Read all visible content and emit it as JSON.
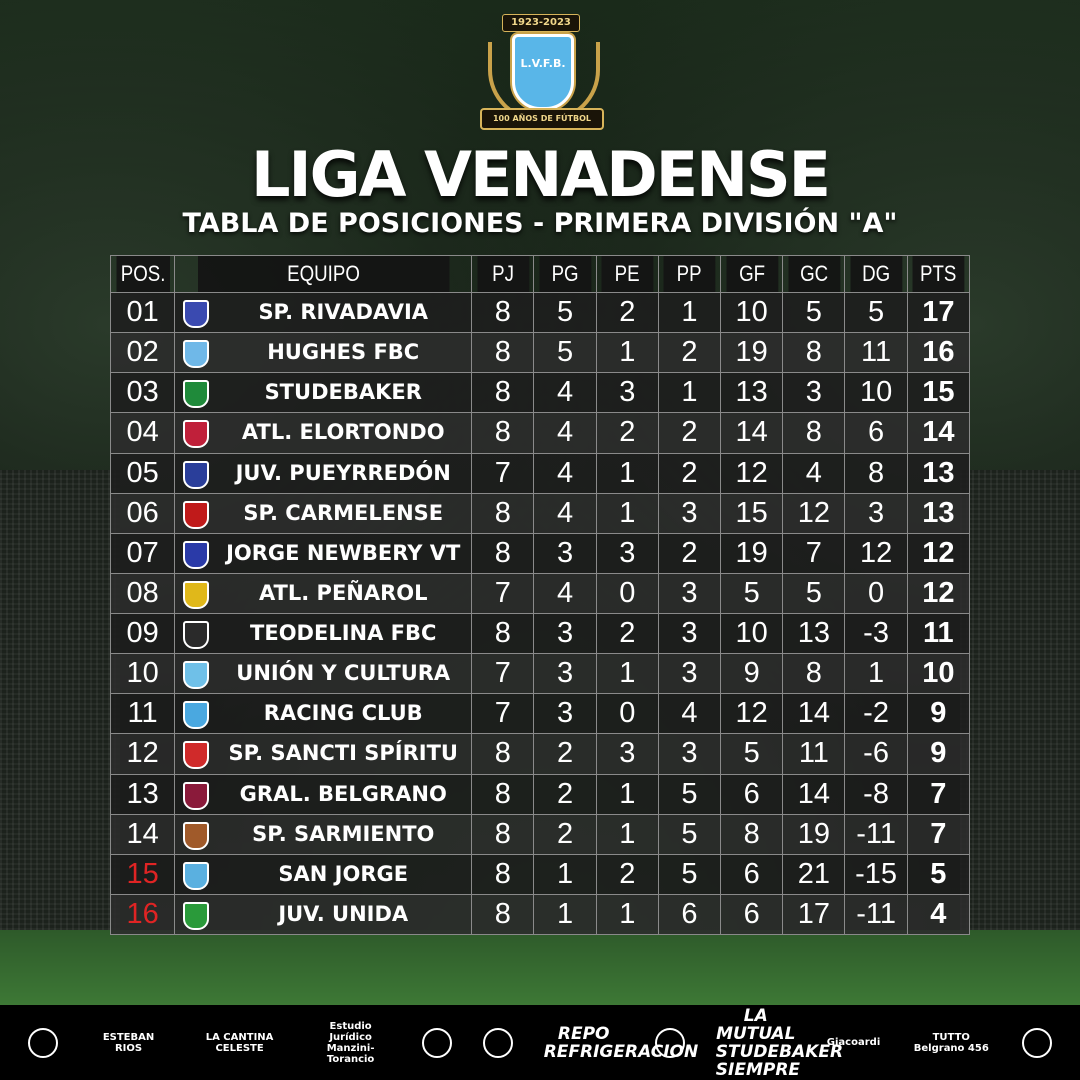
{
  "logo": {
    "years": "1923-2023",
    "initials": "L.V.F.B.",
    "ribbon": "100 AÑOS DE FÚTBOL"
  },
  "header": {
    "title": "LIGA VENADENSE",
    "subtitle": "TABLA DE POSICIONES - PRIMERA DIVISIÓN \"A\""
  },
  "table": {
    "columns": [
      "POS.",
      "EQUIPO",
      "PJ",
      "PG",
      "PE",
      "PP",
      "GF",
      "GC",
      "DG",
      "PTS"
    ],
    "rows": [
      {
        "pos": "01",
        "team": "SP. RIVADAVIA",
        "crest_color": "#3a4ab0",
        "pj": "8",
        "pg": "5",
        "pe": "2",
        "pp": "1",
        "gf": "10",
        "gc": "5",
        "dg": "5",
        "pts": "17"
      },
      {
        "pos": "02",
        "team": "HUGHES FBC",
        "crest_color": "#6fb8e8",
        "pj": "8",
        "pg": "5",
        "pe": "1",
        "pp": "2",
        "gf": "19",
        "gc": "8",
        "dg": "11",
        "pts": "16"
      },
      {
        "pos": "03",
        "team": "STUDEBAKER",
        "crest_color": "#1f8a3a",
        "pj": "8",
        "pg": "4",
        "pe": "3",
        "pp": "1",
        "gf": "13",
        "gc": "3",
        "dg": "10",
        "pts": "15"
      },
      {
        "pos": "04",
        "team": "ATL. ELORTONDO",
        "crest_color": "#c0203a",
        "pj": "8",
        "pg": "4",
        "pe": "2",
        "pp": "2",
        "gf": "14",
        "gc": "8",
        "dg": "6",
        "pts": "14"
      },
      {
        "pos": "05",
        "team": "JUV. PUEYRREDÓN",
        "crest_color": "#2a3e9a",
        "pj": "7",
        "pg": "4",
        "pe": "1",
        "pp": "2",
        "gf": "12",
        "gc": "4",
        "dg": "8",
        "pts": "13"
      },
      {
        "pos": "06",
        "team": "SP. CARMELENSE",
        "crest_color": "#c01a1a",
        "pj": "8",
        "pg": "4",
        "pe": "1",
        "pp": "3",
        "gf": "15",
        "gc": "12",
        "dg": "3",
        "pts": "13"
      },
      {
        "pos": "07",
        "team": "JORGE NEWBERY VT",
        "crest_color": "#2a3aa8",
        "pj": "8",
        "pg": "3",
        "pe": "3",
        "pp": "2",
        "gf": "19",
        "gc": "7",
        "dg": "12",
        "pts": "12"
      },
      {
        "pos": "08",
        "team": "ATL. PEÑAROL",
        "crest_color": "#e0b81a",
        "pj": "7",
        "pg": "4",
        "pe": "0",
        "pp": "3",
        "gf": "5",
        "gc": "5",
        "dg": "0",
        "pts": "12"
      },
      {
        "pos": "09",
        "team": "TEODELINA FBC",
        "crest_color": "#2a2a2a",
        "pj": "8",
        "pg": "3",
        "pe": "2",
        "pp": "3",
        "gf": "10",
        "gc": "13",
        "dg": "-3",
        "pts": "11"
      },
      {
        "pos": "10",
        "team": "UNIÓN Y CULTURA",
        "crest_color": "#6fc0e8",
        "pj": "7",
        "pg": "3",
        "pe": "1",
        "pp": "3",
        "gf": "9",
        "gc": "8",
        "dg": "1",
        "pts": "10"
      },
      {
        "pos": "11",
        "team": "RACING CLUB",
        "crest_color": "#4aa8e0",
        "pj": "7",
        "pg": "3",
        "pe": "0",
        "pp": "4",
        "gf": "12",
        "gc": "14",
        "dg": "-2",
        "pts": "9"
      },
      {
        "pos": "12",
        "team": "SP. SANCTI SPÍRITU",
        "crest_color": "#d02a2a",
        "pj": "8",
        "pg": "2",
        "pe": "3",
        "pp": "3",
        "gf": "5",
        "gc": "11",
        "dg": "-6",
        "pts": "9"
      },
      {
        "pos": "13",
        "team": "GRAL. BELGRANO",
        "crest_color": "#8a1a3a",
        "pj": "8",
        "pg": "2",
        "pe": "1",
        "pp": "5",
        "gf": "6",
        "gc": "14",
        "dg": "-8",
        "pts": "7"
      },
      {
        "pos": "14",
        "team": "SP. SARMIENTO",
        "crest_color": "#a05a2a",
        "pj": "8",
        "pg": "2",
        "pe": "1",
        "pp": "5",
        "gf": "8",
        "gc": "19",
        "dg": "-11",
        "pts": "7"
      },
      {
        "pos": "15",
        "team": "SAN JORGE",
        "crest_color": "#5ab0e0",
        "pj": "8",
        "pg": "1",
        "pe": "2",
        "pp": "5",
        "gf": "6",
        "gc": "21",
        "dg": "-15",
        "pts": "5",
        "relegated": true
      },
      {
        "pos": "16",
        "team": "JUV. UNIDA",
        "crest_color": "#2a9a3a",
        "pj": "8",
        "pg": "1",
        "pe": "1",
        "pp": "6",
        "gf": "6",
        "gc": "17",
        "dg": "-11",
        "pts": "4",
        "relegated": true
      }
    ]
  },
  "sponsors": [
    {
      "name": "",
      "icon": "circle-logo-icon"
    },
    {
      "name": "ESTEBAN RIOS"
    },
    {
      "name": "LA CANTINA CELESTE"
    },
    {
      "name": "Estudio Jurídico Manzini-Torancio"
    },
    {
      "name": "",
      "icon": "h-circle-icon"
    },
    {
      "name": "",
      "icon": "mf-circle-icon"
    },
    {
      "name": "REPO REFRIGERACION",
      "big": true
    },
    {
      "name": "",
      "icon": "shield-emblem-icon"
    },
    {
      "name": "LA MUTUAL STUDEBAKER SIEMPRE",
      "big": true
    },
    {
      "name": "Giacoardi"
    },
    {
      "name": "TUTTO Belgrano 456"
    },
    {
      "name": "",
      "icon": "a-circle-icon"
    }
  ]
}
